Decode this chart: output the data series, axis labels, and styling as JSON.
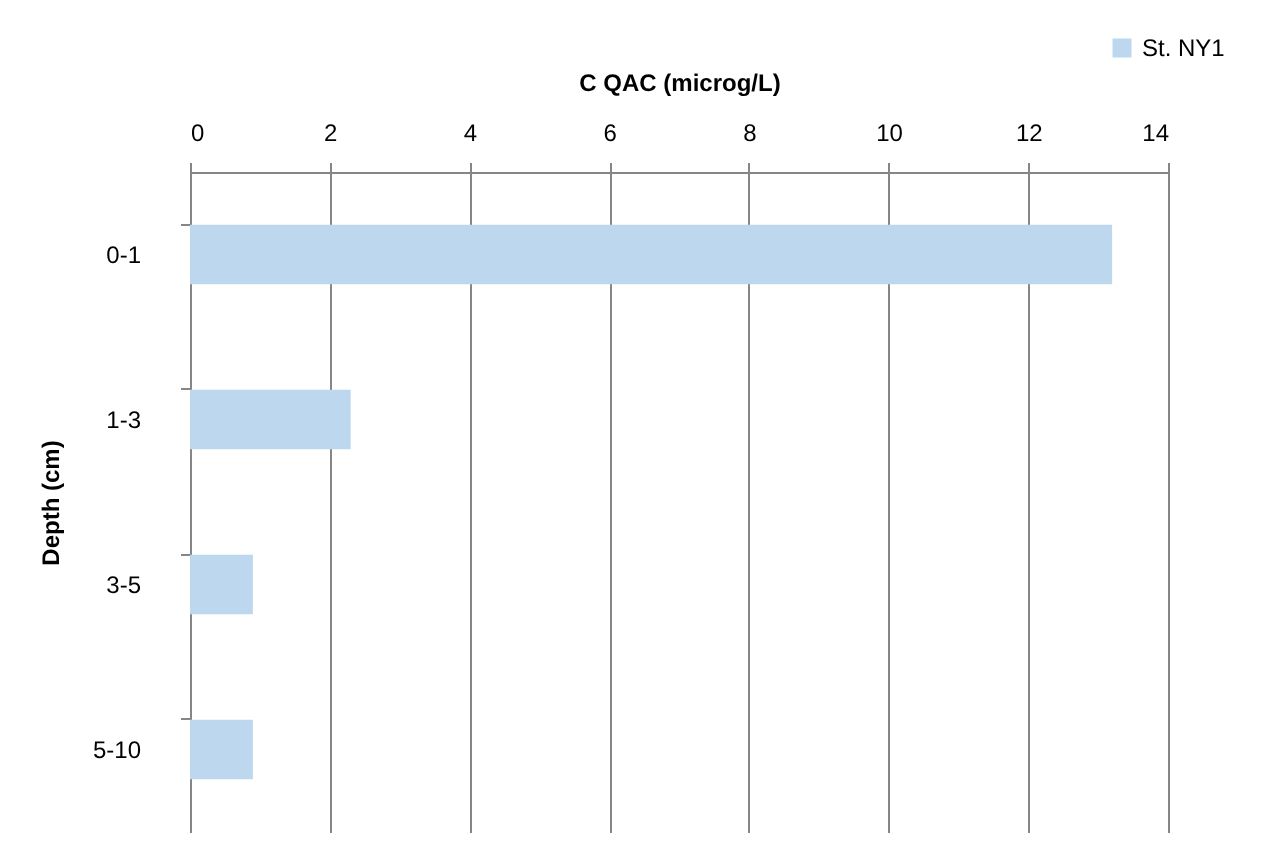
{
  "chart_data": {
    "type": "bar",
    "orientation": "horizontal",
    "xlabel": "C QAC (microg/L)",
    "ylabel": "Depth (cm)",
    "categories": [
      "0-1",
      "1-3",
      "3-5",
      "5-10"
    ],
    "series": [
      {
        "name": "St. NY1",
        "color": "#bdd7ee",
        "values": [
          13.2,
          2.3,
          0.9,
          0.9
        ]
      }
    ],
    "xlim": [
      0,
      14
    ],
    "xticks": [
      0,
      2,
      4,
      6,
      8,
      10,
      12,
      14
    ],
    "grid": "x",
    "legend": "top right"
  }
}
